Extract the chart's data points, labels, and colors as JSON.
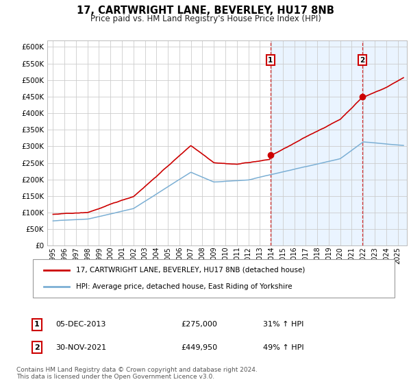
{
  "title": "17, CARTWRIGHT LANE, BEVERLEY, HU17 8NB",
  "subtitle": "Price paid vs. HM Land Registry's House Price Index (HPI)",
  "yticks": [
    0,
    50000,
    100000,
    150000,
    200000,
    250000,
    300000,
    350000,
    400000,
    450000,
    500000,
    550000,
    600000
  ],
  "ylim": [
    0,
    620000
  ],
  "xmin": 1994.5,
  "xmax": 2025.8,
  "red_line_color": "#cc0000",
  "blue_line_color": "#7bafd4",
  "shaded_color": "#ddeeff",
  "grid_color": "#cccccc",
  "vline_color": "#cc0000",
  "bg_color": "#ffffff",
  "transaction1_year": 2013.92,
  "transaction1_price": 275000,
  "transaction2_year": 2021.92,
  "transaction2_price": 449950,
  "transaction1_date": "05-DEC-2013",
  "transaction1_price_str": "£275,000",
  "transaction1_hpi": "31% ↑ HPI",
  "transaction2_date": "30-NOV-2021",
  "transaction2_price_str": "£449,950",
  "transaction2_hpi": "49% ↑ HPI",
  "legend_red_label": "17, CARTWRIGHT LANE, BEVERLEY, HU17 8NB (detached house)",
  "legend_blue_label": "HPI: Average price, detached house, East Riding of Yorkshire",
  "footer_line1": "Contains HM Land Registry data © Crown copyright and database right 2024.",
  "footer_line2": "This data is licensed under the Open Government Licence v3.0."
}
